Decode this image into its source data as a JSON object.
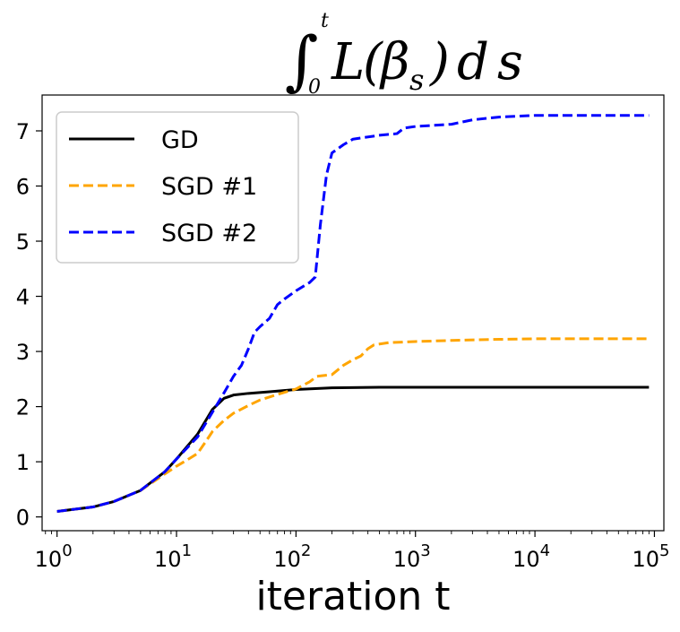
{
  "chart_data": {
    "type": "line",
    "title": "∫₀ᵗ L(βₛ)ds",
    "title_parts": {
      "integral": "∫",
      "lower": "0",
      "upper": "t",
      "func": "L",
      "open": "(",
      "beta": "β",
      "sub": "s",
      "close": ")",
      "d": "d",
      "var": "s"
    },
    "xlabel": "iteration t",
    "ylabel": "",
    "xscale": "log",
    "xlim": [
      0.75,
      120000
    ],
    "ylim": [
      -0.25,
      7.65
    ],
    "xticks": [
      {
        "value": 1,
        "base": "10",
        "exp": "0"
      },
      {
        "value": 10,
        "base": "10",
        "exp": "1"
      },
      {
        "value": 100,
        "base": "10",
        "exp": "2"
      },
      {
        "value": 1000,
        "base": "10",
        "exp": "3"
      },
      {
        "value": 10000,
        "base": "10",
        "exp": "4"
      },
      {
        "value": 100000,
        "base": "10",
        "exp": "5"
      }
    ],
    "yticks": [
      {
        "value": 0,
        "label": "0"
      },
      {
        "value": 1,
        "label": "1"
      },
      {
        "value": 2,
        "label": "2"
      },
      {
        "value": 3,
        "label": "3"
      },
      {
        "value": 4,
        "label": "4"
      },
      {
        "value": 5,
        "label": "5"
      },
      {
        "value": 6,
        "label": "6"
      },
      {
        "value": 7,
        "label": "7"
      }
    ],
    "legend_position": "top-left",
    "series": [
      {
        "name": "GD",
        "color": "#000000",
        "dash": "solid",
        "points": [
          [
            1,
            0.1
          ],
          [
            2,
            0.18
          ],
          [
            3,
            0.28
          ],
          [
            5,
            0.48
          ],
          [
            8,
            0.82
          ],
          [
            10,
            1.05
          ],
          [
            15,
            1.5
          ],
          [
            20,
            1.95
          ],
          [
            25,
            2.15
          ],
          [
            30,
            2.21
          ],
          [
            40,
            2.24
          ],
          [
            60,
            2.27
          ],
          [
            100,
            2.31
          ],
          [
            200,
            2.34
          ],
          [
            500,
            2.35
          ],
          [
            1000,
            2.35
          ],
          [
            10000,
            2.35
          ],
          [
            90000,
            2.35
          ]
        ]
      },
      {
        "name": "SGD #1",
        "color": "#FFA500",
        "dash": "dashed",
        "points": [
          [
            1,
            0.1
          ],
          [
            2,
            0.18
          ],
          [
            3,
            0.28
          ],
          [
            5,
            0.48
          ],
          [
            8,
            0.78
          ],
          [
            10,
            0.92
          ],
          [
            12,
            1.02
          ],
          [
            15,
            1.15
          ],
          [
            18,
            1.4
          ],
          [
            20,
            1.55
          ],
          [
            25,
            1.75
          ],
          [
            30,
            1.88
          ],
          [
            40,
            2.02
          ],
          [
            50,
            2.12
          ],
          [
            70,
            2.22
          ],
          [
            100,
            2.32
          ],
          [
            130,
            2.45
          ],
          [
            150,
            2.55
          ],
          [
            200,
            2.58
          ],
          [
            250,
            2.75
          ],
          [
            300,
            2.85
          ],
          [
            350,
            2.92
          ],
          [
            400,
            3.05
          ],
          [
            450,
            3.12
          ],
          [
            600,
            3.16
          ],
          [
            1000,
            3.18
          ],
          [
            2000,
            3.2
          ],
          [
            5000,
            3.22
          ],
          [
            10000,
            3.23
          ],
          [
            90000,
            3.23
          ]
        ]
      },
      {
        "name": "SGD #2",
        "color": "#0000FF",
        "dash": "dashed",
        "points": [
          [
            1,
            0.1
          ],
          [
            2,
            0.18
          ],
          [
            3,
            0.28
          ],
          [
            5,
            0.48
          ],
          [
            8,
            0.82
          ],
          [
            10,
            1.05
          ],
          [
            15,
            1.45
          ],
          [
            20,
            1.9
          ],
          [
            25,
            2.25
          ],
          [
            30,
            2.55
          ],
          [
            35,
            2.75
          ],
          [
            40,
            3.05
          ],
          [
            45,
            3.35
          ],
          [
            50,
            3.45
          ],
          [
            60,
            3.6
          ],
          [
            70,
            3.85
          ],
          [
            80,
            3.95
          ],
          [
            100,
            4.1
          ],
          [
            130,
            4.25
          ],
          [
            145,
            4.35
          ],
          [
            160,
            5.3
          ],
          [
            180,
            6.2
          ],
          [
            200,
            6.6
          ],
          [
            250,
            6.75
          ],
          [
            300,
            6.85
          ],
          [
            500,
            6.92
          ],
          [
            700,
            6.95
          ],
          [
            800,
            7.05
          ],
          [
            1000,
            7.08
          ],
          [
            2000,
            7.12
          ],
          [
            3000,
            7.2
          ],
          [
            5000,
            7.25
          ],
          [
            10000,
            7.28
          ],
          [
            90000,
            7.28
          ]
        ]
      }
    ]
  }
}
